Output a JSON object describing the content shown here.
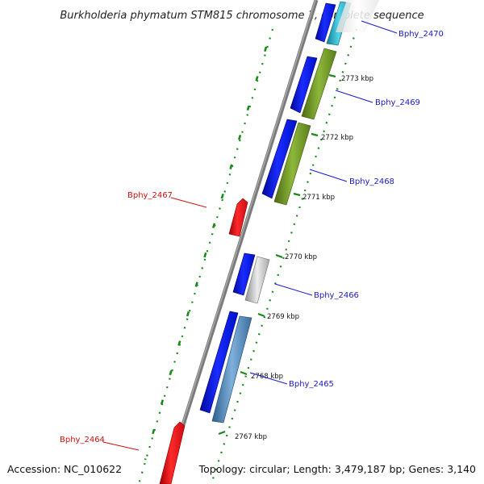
{
  "title": "Burkholderia phymatum STM815 chromosome 1, complete sequence",
  "footer": {
    "accession": "Accession: NC_010622",
    "summary": "Topology: circular; Length: 3,479,187 bp; Genes: 3,140"
  },
  "colors": {
    "forward_gene": "#0a1ee6",
    "reverse_olive": "#6b8e23",
    "reverse_gray": "#b8b8b8",
    "reverse_steel": "#4f86b8",
    "reverse_teal": "#1aa3b8",
    "reverse_strand_gene": "#e8161a",
    "backbone": "#888888",
    "ticks": "#1a8a1a",
    "forward_label": "#1a1acc",
    "reverse_label": "#cc1111"
  },
  "scale_labels": [
    "2767 kbp",
    "2768 kbp",
    "2769 kbp",
    "2770 kbp",
    "2771 kbp",
    "2772 kbp",
    "2773 kbp"
  ],
  "gene_labels": [
    {
      "id": "Bphy_2470",
      "strand": "forward"
    },
    {
      "id": "Bphy_2469",
      "strand": "forward"
    },
    {
      "id": "Bphy_2468",
      "strand": "forward"
    },
    {
      "id": "Bphy_2467",
      "strand": "reverse"
    },
    {
      "id": "Bphy_2466",
      "strand": "forward"
    },
    {
      "id": "Bphy_2465",
      "strand": "forward"
    },
    {
      "id": "Bphy_2464",
      "strand": "reverse"
    }
  ]
}
